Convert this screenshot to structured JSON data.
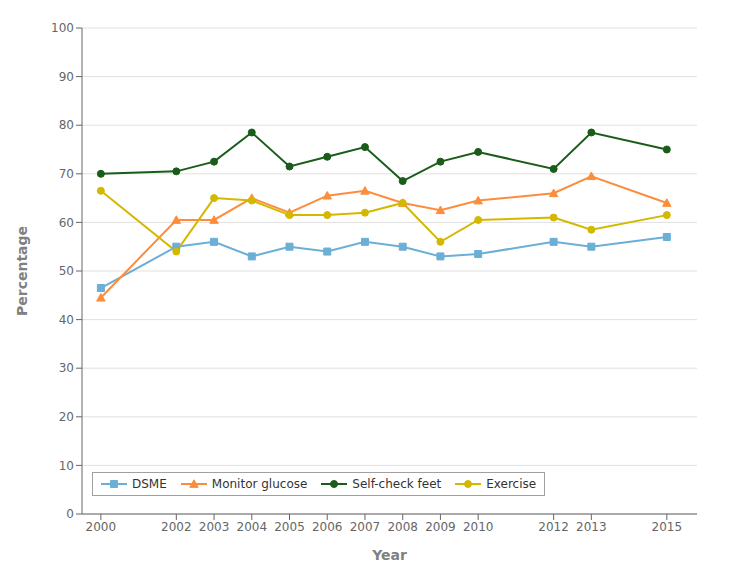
{
  "chart_data": {
    "type": "line",
    "xlabel": "Year",
    "ylabel": "Percentage",
    "x": [
      2000,
      2002,
      2003,
      2004,
      2005,
      2006,
      2007,
      2008,
      2009,
      2010,
      2012,
      2013,
      2015
    ],
    "series": [
      {
        "name": "DSME",
        "color": "#6baed6",
        "marker": "square",
        "values": [
          46.5,
          55,
          56,
          53,
          55,
          54,
          56,
          55,
          53,
          53.5,
          56,
          55,
          57
        ]
      },
      {
        "name": "Monitor glucose",
        "color": "#fd8d3c",
        "marker": "triangle",
        "values": [
          44.5,
          60.5,
          60.5,
          65,
          62,
          65.5,
          66.5,
          64,
          62.5,
          64.5,
          66,
          69.5,
          64
        ]
      },
      {
        "name": "Self-check feet",
        "color": "#1a5c1a",
        "marker": "circle",
        "values": [
          70,
          70.5,
          72.5,
          78.5,
          71.5,
          73.5,
          75.5,
          68.5,
          72.5,
          74.5,
          71,
          78.5,
          75
        ]
      },
      {
        "name": "Exercise",
        "color": "#d4b800",
        "marker": "circle",
        "values": [
          66.5,
          54,
          65,
          64.5,
          61.5,
          61.5,
          62,
          64,
          56,
          60.5,
          61,
          58.5,
          61.5
        ]
      }
    ],
    "xlim": [
      1999.5,
      2015.8
    ],
    "xticks": [
      2000,
      2002,
      2003,
      2004,
      2005,
      2006,
      2007,
      2008,
      2009,
      2010,
      2012,
      2013,
      2015
    ],
    "ylim": [
      0,
      100
    ],
    "yticks": [
      0,
      10,
      20,
      30,
      40,
      50,
      60,
      70,
      80,
      90,
      100
    ],
    "grid": "y",
    "legend": "lower left"
  }
}
